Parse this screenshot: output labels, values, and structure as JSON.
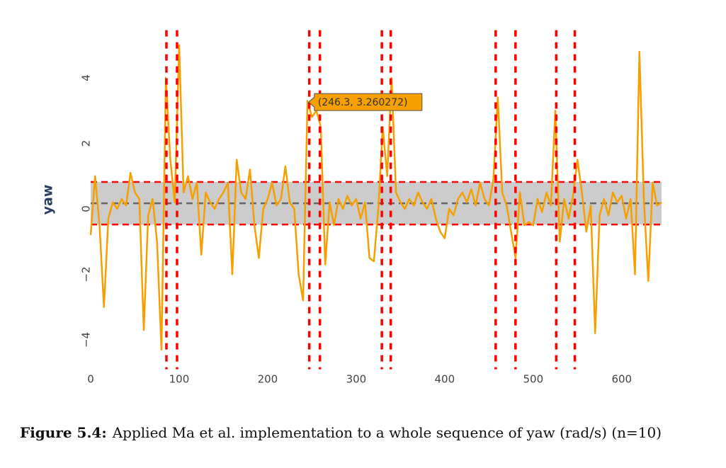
{
  "chart_data": {
    "type": "line",
    "ylabel": "yaw",
    "caption": {
      "label": "Figure 5.4:",
      "text": "Applied Ma et al. implementation to a whole sequence of yaw (rad/s) (n=10)"
    },
    "xlim": [
      0,
      645
    ],
    "ylim": [
      -4.9,
      5.5
    ],
    "xticks": [
      0,
      100,
      200,
      300,
      400,
      500,
      600
    ],
    "yticks": [
      {
        "value": -4,
        "label": "−4"
      },
      {
        "value": -2,
        "label": "−2"
      },
      0,
      2,
      4
    ],
    "grid": false,
    "x": [
      0,
      5,
      10,
      15,
      20,
      25,
      30,
      35,
      40,
      45,
      50,
      55,
      60,
      65,
      70,
      75,
      80,
      85,
      90,
      95,
      100,
      105,
      110,
      115,
      120,
      125,
      130,
      135,
      140,
      145,
      150,
      155,
      160,
      165,
      170,
      175,
      180,
      185,
      190,
      195,
      200,
      205,
      210,
      215,
      220,
      225,
      230,
      235,
      240,
      245,
      250,
      255,
      260,
      265,
      270,
      275,
      280,
      285,
      290,
      295,
      300,
      305,
      310,
      315,
      320,
      325,
      330,
      335,
      340,
      345,
      350,
      355,
      360,
      365,
      370,
      375,
      380,
      385,
      390,
      395,
      400,
      405,
      410,
      415,
      420,
      425,
      430,
      435,
      440,
      445,
      450,
      455,
      460,
      465,
      470,
      475,
      480,
      485,
      490,
      495,
      500,
      505,
      510,
      515,
      520,
      525,
      530,
      535,
      540,
      545,
      550,
      555,
      560,
      565,
      570,
      575,
      580,
      585,
      590,
      595,
      600,
      605,
      610,
      615,
      620,
      625,
      630,
      635,
      640,
      645
    ],
    "series": [
      {
        "name": "yaw",
        "color": "#f5a000",
        "values": [
          -0.8,
          1.0,
          -0.5,
          -3.0,
          -0.3,
          0.2,
          0.0,
          0.3,
          0.1,
          1.1,
          0.5,
          0.3,
          -3.7,
          -0.2,
          0.3,
          -1.0,
          -4.3,
          4.0,
          1.5,
          0.2,
          5.0,
          0.5,
          1.0,
          0.3,
          0.8,
          -1.4,
          0.5,
          0.2,
          0.0,
          0.3,
          0.5,
          0.8,
          -2.0,
          1.5,
          0.5,
          0.3,
          1.2,
          -0.5,
          -1.5,
          0.0,
          0.3,
          0.8,
          0.1,
          0.3,
          1.3,
          0.2,
          0.0,
          -2.0,
          -2.8,
          3.3,
          2.8,
          3.0,
          2.5,
          -1.7,
          0.2,
          -0.5,
          0.3,
          0.0,
          0.4,
          0.1,
          0.3,
          -0.3,
          0.2,
          -1.5,
          -1.6,
          0.0,
          2.5,
          1.0,
          4.0,
          0.5,
          0.2,
          0.0,
          0.3,
          0.1,
          0.5,
          0.2,
          0.0,
          0.3,
          -0.3,
          -0.7,
          -0.9,
          0.0,
          -0.2,
          0.3,
          0.5,
          0.2,
          0.6,
          0.1,
          0.8,
          0.3,
          0.1,
          0.9,
          3.4,
          0.5,
          0.1,
          -0.7,
          -1.5,
          0.5,
          -0.5,
          -0.4,
          -0.5,
          0.3,
          -0.1,
          0.5,
          0.1,
          3.0,
          -1.0,
          0.3,
          -0.3,
          0.4,
          1.5,
          0.5,
          -0.7,
          0.1,
          -3.8,
          -0.2,
          0.3,
          -0.2,
          0.5,
          0.2,
          0.4,
          -0.3,
          0.3,
          -2.0,
          4.8,
          0.3,
          -2.2,
          0.8,
          0.1,
          0.2
        ]
      }
    ],
    "vlines": {
      "color": "#ff0000",
      "x": [
        85.6,
        97.6,
        247,
        259,
        329,
        339,
        457.6,
        480,
        526,
        547
      ]
    },
    "band": {
      "color": "#cccccc",
      "edge_color": "#ff0000",
      "y": [
        -0.48,
        0.82
      ]
    },
    "mean_line": {
      "color": "#666666",
      "y": 0.17
    },
    "annotation": {
      "text": "(246.3, 3.260272)",
      "x": 246.3,
      "y": 3.260272,
      "color": "#f5a000"
    }
  }
}
